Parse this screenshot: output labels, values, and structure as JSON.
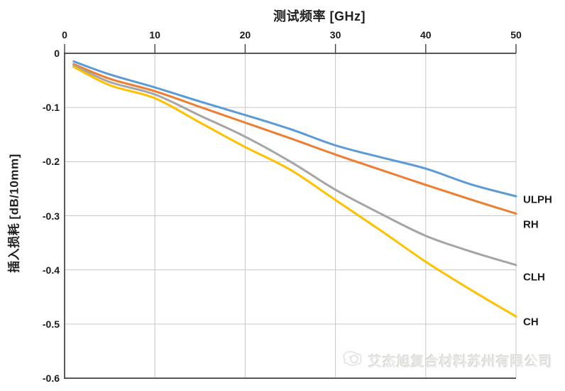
{
  "title": "测试频率 [GHz]",
  "y_axis_label": "插入损耗 [dB/10mm]",
  "watermark": {
    "text": "艾杰旭复合材料苏州有限公司",
    "logo": "company-logo"
  },
  "colors": {
    "axis": "#404040",
    "grid": "#c6c6c6",
    "text": "#1a1a1a",
    "watermark": "#ecece9"
  },
  "chart_data": {
    "type": "line",
    "title": "测试频率 [GHz]",
    "xlabel": "测试频率 [GHz]",
    "ylabel": "插入损耗 [dB/10mm]",
    "xlim": [
      0,
      50
    ],
    "ylim": [
      -0.6,
      0
    ],
    "x_axis_position": "top",
    "grid": true,
    "legend_position": "right-end-labels",
    "x_tick_labels": [
      "0",
      "10",
      "20",
      "30",
      "40",
      "50"
    ],
    "x_ticks": [
      0,
      10,
      20,
      30,
      40,
      50
    ],
    "y_tick_labels": [
      "0",
      "-0.1",
      "-0.2",
      "-0.3",
      "-0.4",
      "-0.5",
      "-0.6"
    ],
    "y_ticks": [
      0,
      -0.1,
      -0.2,
      -0.3,
      -0.4,
      -0.5,
      -0.6
    ],
    "x": [
      1,
      5,
      10,
      15,
      20,
      25,
      30,
      35,
      40,
      45,
      50
    ],
    "series": [
      {
        "name": "ULPH",
        "color": "#5b9bd5",
        "values": [
          -0.015,
          -0.039,
          -0.063,
          -0.089,
          -0.114,
          -0.14,
          -0.17,
          -0.192,
          -0.213,
          -0.242,
          -0.264
        ]
      },
      {
        "name": "RH",
        "color": "#ed7d31",
        "values": [
          -0.02,
          -0.047,
          -0.07,
          -0.099,
          -0.128,
          -0.157,
          -0.187,
          -0.215,
          -0.243,
          -0.27,
          -0.296
        ]
      },
      {
        "name": "CLH",
        "color": "#a5a5a5",
        "values": [
          -0.022,
          -0.053,
          -0.076,
          -0.115,
          -0.154,
          -0.2,
          -0.252,
          -0.296,
          -0.337,
          -0.366,
          -0.391
        ]
      },
      {
        "name": "CH",
        "color": "#ffc000",
        "values": [
          -0.025,
          -0.059,
          -0.083,
          -0.128,
          -0.173,
          -0.215,
          -0.271,
          -0.327,
          -0.385,
          -0.437,
          -0.486
        ]
      }
    ]
  }
}
